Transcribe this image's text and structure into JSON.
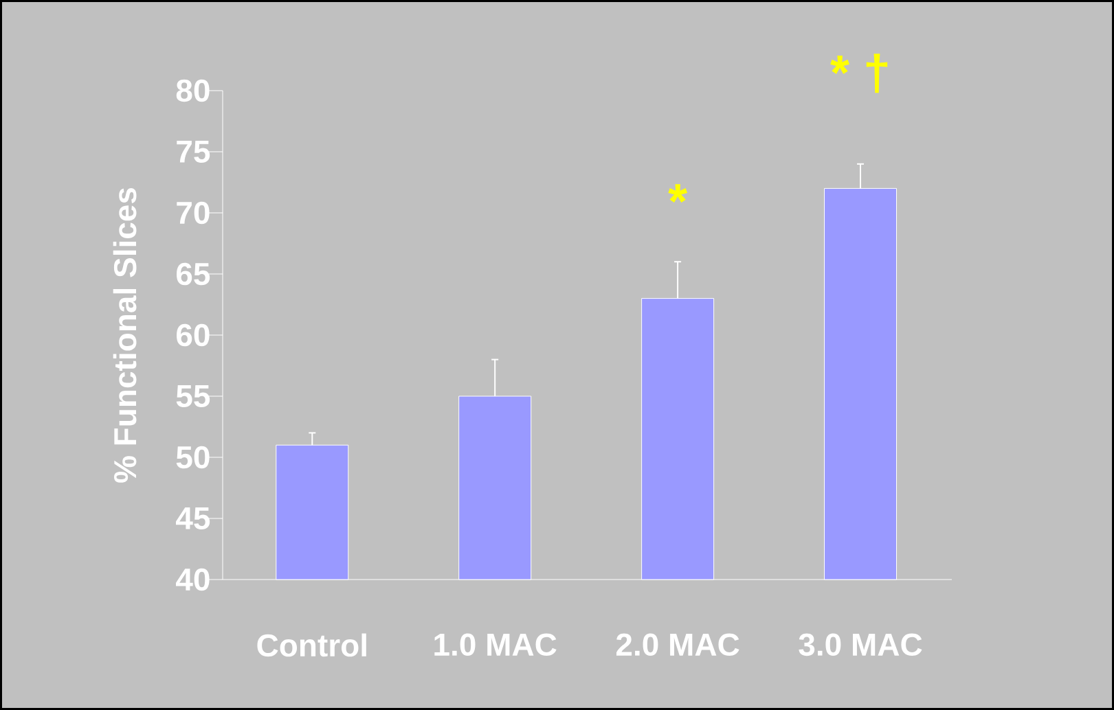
{
  "chart_data": {
    "type": "bar",
    "ylabel": "% Functional Slices",
    "categories": [
      "Control",
      "1.0 MAC",
      "2.0 MAC",
      "3.0 MAC"
    ],
    "values": [
      51,
      55,
      63,
      72
    ],
    "errors": [
      1,
      3,
      3,
      2
    ],
    "color": "#9999ff",
    "ylim": [
      40,
      80
    ],
    "yticks": [
      40,
      45,
      50,
      55,
      60,
      65,
      70,
      75,
      80
    ],
    "annotations": [
      "*",
      "* †"
    ]
  }
}
